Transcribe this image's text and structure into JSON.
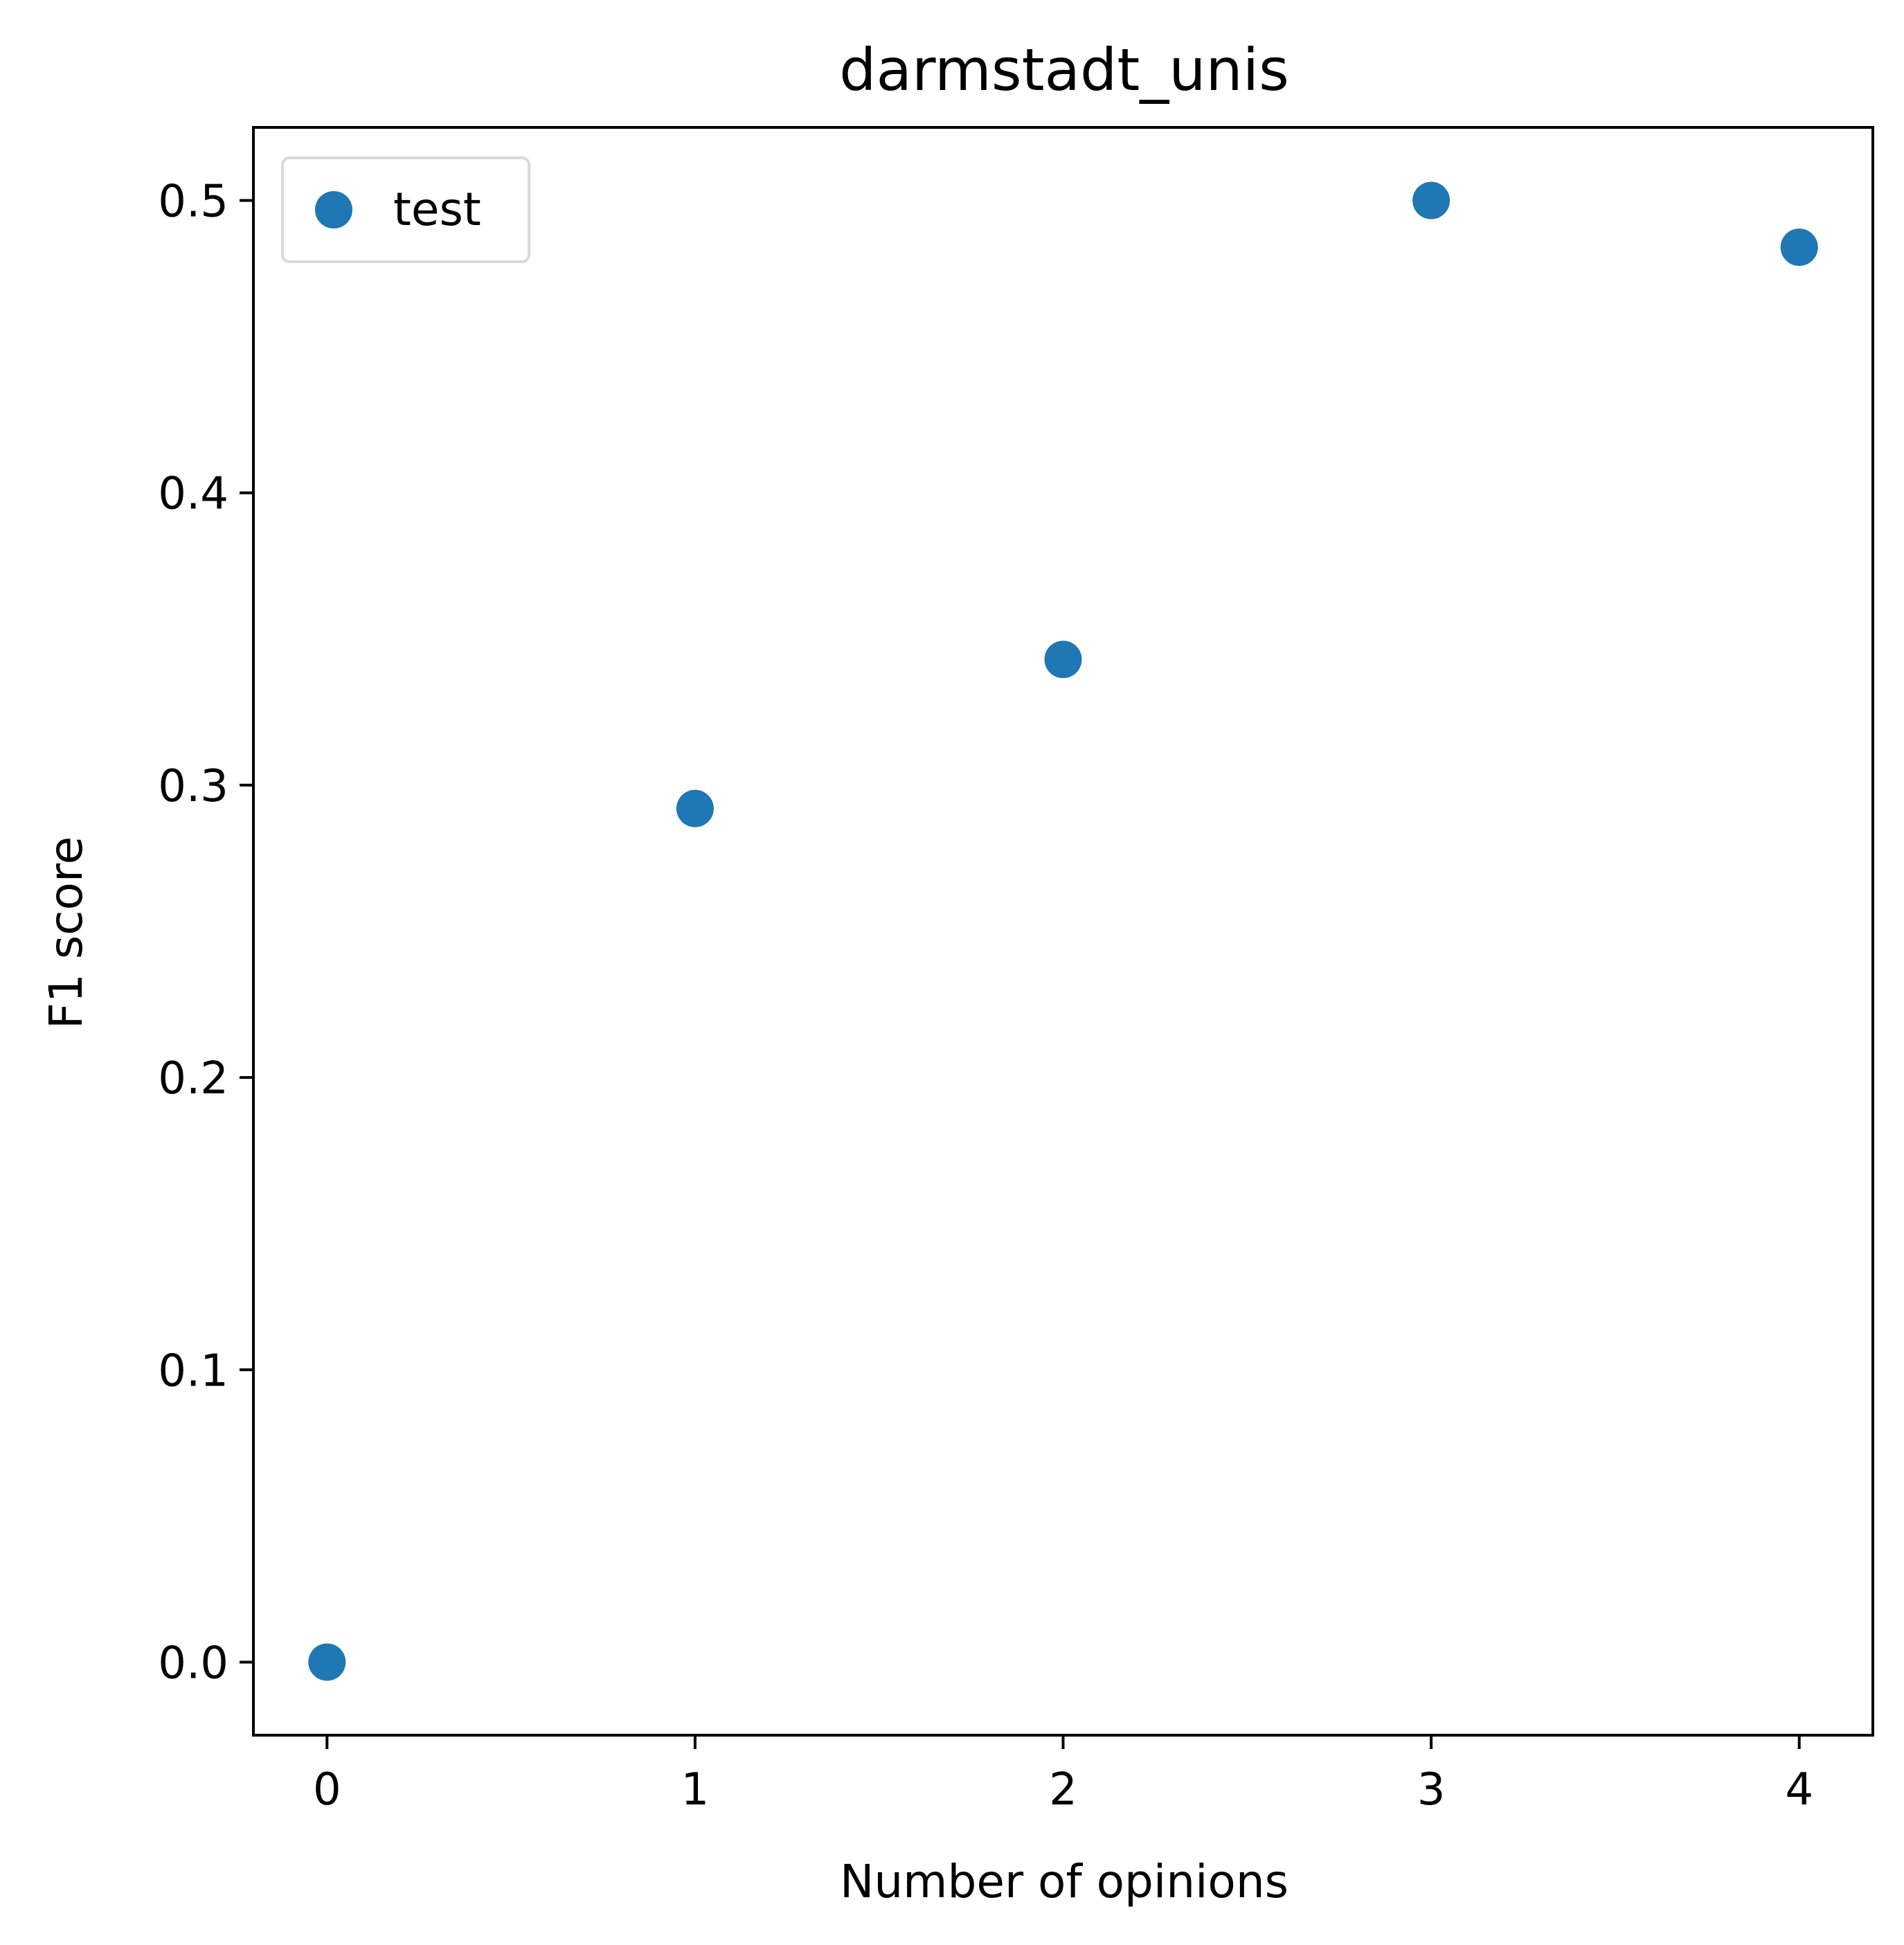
{
  "chart_data": {
    "type": "scatter",
    "title": "darmstadt_unis",
    "xlabel": "Number of opinions",
    "ylabel": "F1 score",
    "xlim": [
      -0.2,
      4.2
    ],
    "ylim": [
      -0.025,
      0.525
    ],
    "xticks": [
      0,
      1,
      2,
      3,
      4
    ],
    "xtick_labels": [
      "0",
      "1",
      "2",
      "3",
      "4"
    ],
    "yticks": [
      0.0,
      0.1,
      0.2,
      0.3,
      0.4,
      0.5
    ],
    "ytick_labels": [
      "0.0",
      "0.1",
      "0.2",
      "0.3",
      "0.4",
      "0.5"
    ],
    "grid": false,
    "legend": "top-left",
    "series": [
      {
        "name": "test",
        "color": "#1f77b4",
        "x": [
          0,
          1,
          2,
          3,
          4
        ],
        "y": [
          0.0,
          0.292,
          0.343,
          0.5,
          0.484
        ]
      }
    ]
  }
}
